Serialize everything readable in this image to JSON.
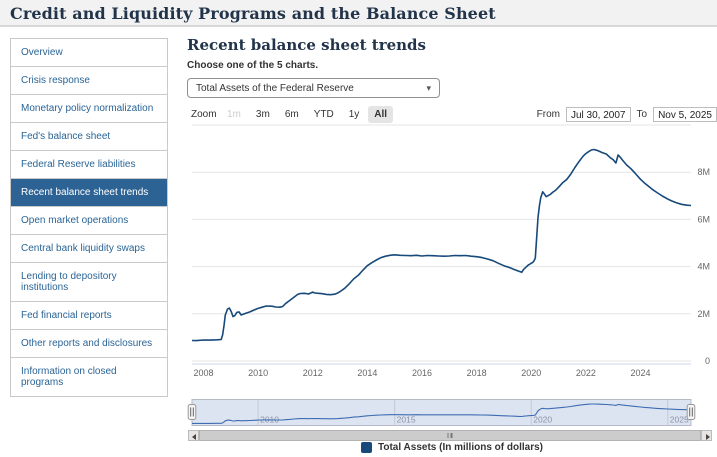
{
  "header": {
    "title": "Credit and Liquidity Programs and the Balance Sheet"
  },
  "sidebar": {
    "items": [
      {
        "label": "Overview",
        "selected": false
      },
      {
        "label": "Crisis response",
        "selected": false
      },
      {
        "label": "Monetary policy normalization",
        "selected": false
      },
      {
        "label": "Fed's balance sheet",
        "selected": false
      },
      {
        "label": "Federal Reserve liabilities",
        "selected": false
      },
      {
        "label": "Recent balance sheet trends",
        "selected": true
      },
      {
        "label": "Open market operations",
        "selected": false
      },
      {
        "label": "Central bank liquidity swaps",
        "selected": false
      },
      {
        "label": "Lending to depository institutions",
        "selected": false
      },
      {
        "label": "Fed financial reports",
        "selected": false
      },
      {
        "label": "Other reports and disclosures",
        "selected": false
      },
      {
        "label": "Information on closed programs",
        "selected": false
      }
    ]
  },
  "main": {
    "title": "Recent balance sheet trends",
    "chooser_label": "Choose one of the 5 charts.",
    "select": {
      "value": "Total Assets of the Federal Reserve"
    },
    "range_selector": {
      "zoom_label": "Zoom",
      "buttons": [
        {
          "label": "1m",
          "state": "disabled"
        },
        {
          "label": "3m",
          "state": "normal"
        },
        {
          "label": "6m",
          "state": "normal"
        },
        {
          "label": "YTD",
          "state": "normal"
        },
        {
          "label": "1y",
          "state": "normal"
        },
        {
          "label": "All",
          "state": "selected"
        }
      ],
      "from_label": "From",
      "from_value": "Jul 30, 2007",
      "to_label": "To",
      "to_value": "Nov 5, 2025"
    },
    "legend": {
      "label": "Total Assets (In millions of dollars)"
    }
  },
  "chart_data": {
    "type": "line",
    "title": "",
    "series_name": "Total Assets (In millions of dollars)",
    "x_unit": "year",
    "x_range": [
      2007.58,
      2025.85
    ],
    "ylim": [
      0,
      10000000
    ],
    "grid": true,
    "legend_position": "bottom",
    "x_ticks": [
      2008,
      2010,
      2012,
      2014,
      2016,
      2018,
      2020,
      2022,
      2024
    ],
    "y_ticks": [
      {
        "value": 0,
        "label": "0"
      },
      {
        "value": 2000000,
        "label": "2M"
      },
      {
        "value": 4000000,
        "label": "4M"
      },
      {
        "value": 6000000,
        "label": "6M"
      },
      {
        "value": 8000000,
        "label": "8M"
      },
      {
        "value": 10000000,
        "label": ""
      }
    ],
    "navigator_x_ticks": [
      2010,
      2015,
      2020,
      2025
    ],
    "points": [
      [
        2007.58,
        870000
      ],
      [
        2007.75,
        865000
      ],
      [
        2008.0,
        890000
      ],
      [
        2008.25,
        885000
      ],
      [
        2008.5,
        900000
      ],
      [
        2008.65,
        910000
      ],
      [
        2008.7,
        1100000
      ],
      [
        2008.75,
        1500000
      ],
      [
        2008.8,
        1950000
      ],
      [
        2008.88,
        2200000
      ],
      [
        2008.95,
        2240000
      ],
      [
        2009.02,
        2090000
      ],
      [
        2009.08,
        1880000
      ],
      [
        2009.15,
        1930000
      ],
      [
        2009.22,
        2060000
      ],
      [
        2009.3,
        2080000
      ],
      [
        2009.38,
        1950000
      ],
      [
        2009.45,
        1980000
      ],
      [
        2009.55,
        2020000
      ],
      [
        2009.7,
        2080000
      ],
      [
        2009.85,
        2160000
      ],
      [
        2010.0,
        2230000
      ],
      [
        2010.15,
        2280000
      ],
      [
        2010.3,
        2330000
      ],
      [
        2010.5,
        2320000
      ],
      [
        2010.65,
        2290000
      ],
      [
        2010.8,
        2280000
      ],
      [
        2010.9,
        2310000
      ],
      [
        2011.0,
        2430000
      ],
      [
        2011.15,
        2560000
      ],
      [
        2011.3,
        2690000
      ],
      [
        2011.45,
        2820000
      ],
      [
        2011.55,
        2860000
      ],
      [
        2011.7,
        2870000
      ],
      [
        2011.85,
        2840000
      ],
      [
        2012.0,
        2920000
      ],
      [
        2012.08,
        2880000
      ],
      [
        2012.2,
        2870000
      ],
      [
        2012.35,
        2850000
      ],
      [
        2012.5,
        2820000
      ],
      [
        2012.65,
        2810000
      ],
      [
        2012.8,
        2830000
      ],
      [
        2012.92,
        2880000
      ],
      [
        2013.0,
        2940000
      ],
      [
        2013.17,
        3080000
      ],
      [
        2013.33,
        3260000
      ],
      [
        2013.5,
        3480000
      ],
      [
        2013.67,
        3630000
      ],
      [
        2013.83,
        3840000
      ],
      [
        2014.0,
        4040000
      ],
      [
        2014.17,
        4170000
      ],
      [
        2014.33,
        4280000
      ],
      [
        2014.5,
        4380000
      ],
      [
        2014.67,
        4440000
      ],
      [
        2014.83,
        4480000
      ],
      [
        2015.0,
        4500000
      ],
      [
        2015.2,
        4480000
      ],
      [
        2015.4,
        4470000
      ],
      [
        2015.6,
        4460000
      ],
      [
        2015.8,
        4480000
      ],
      [
        2016.0,
        4450000
      ],
      [
        2016.2,
        4470000
      ],
      [
        2016.4,
        4460000
      ],
      [
        2016.6,
        4450000
      ],
      [
        2016.8,
        4440000
      ],
      [
        2017.0,
        4450000
      ],
      [
        2017.2,
        4470000
      ],
      [
        2017.4,
        4460000
      ],
      [
        2017.6,
        4470000
      ],
      [
        2017.8,
        4440000
      ],
      [
        2018.0,
        4420000
      ],
      [
        2018.2,
        4380000
      ],
      [
        2018.4,
        4320000
      ],
      [
        2018.6,
        4250000
      ],
      [
        2018.8,
        4140000
      ],
      [
        2019.0,
        4040000
      ],
      [
        2019.2,
        3960000
      ],
      [
        2019.4,
        3870000
      ],
      [
        2019.55,
        3800000
      ],
      [
        2019.65,
        3760000
      ],
      [
        2019.72,
        3880000
      ],
      [
        2019.8,
        3970000
      ],
      [
        2019.9,
        4070000
      ],
      [
        2019.95,
        4100000
      ],
      [
        2020.0,
        4150000
      ],
      [
        2020.05,
        4170000
      ],
      [
        2020.1,
        4240000
      ],
      [
        2020.15,
        4360000
      ],
      [
        2020.2,
        5250000
      ],
      [
        2020.25,
        6080000
      ],
      [
        2020.3,
        6570000
      ],
      [
        2020.35,
        6930000
      ],
      [
        2020.42,
        7170000
      ],
      [
        2020.48,
        7080000
      ],
      [
        2020.55,
        6960000
      ],
      [
        2020.62,
        7010000
      ],
      [
        2020.7,
        7060000
      ],
      [
        2020.8,
        7160000
      ],
      [
        2020.9,
        7240000
      ],
      [
        2021.0,
        7360000
      ],
      [
        2021.15,
        7550000
      ],
      [
        2021.3,
        7690000
      ],
      [
        2021.45,
        7920000
      ],
      [
        2021.6,
        8200000
      ],
      [
        2021.75,
        8450000
      ],
      [
        2021.9,
        8680000
      ],
      [
        2022.0,
        8790000
      ],
      [
        2022.1,
        8870000
      ],
      [
        2022.2,
        8940000
      ],
      [
        2022.3,
        8960000
      ],
      [
        2022.4,
        8930000
      ],
      [
        2022.5,
        8880000
      ],
      [
        2022.6,
        8830000
      ],
      [
        2022.75,
        8770000
      ],
      [
        2022.9,
        8610000
      ],
      [
        2023.0,
        8530000
      ],
      [
        2023.1,
        8390000
      ],
      [
        2023.18,
        8730000
      ],
      [
        2023.25,
        8650000
      ],
      [
        2023.35,
        8500000
      ],
      [
        2023.5,
        8300000
      ],
      [
        2023.65,
        8150000
      ],
      [
        2023.8,
        7960000
      ],
      [
        2024.0,
        7700000
      ],
      [
        2024.15,
        7540000
      ],
      [
        2024.3,
        7400000
      ],
      [
        2024.45,
        7260000
      ],
      [
        2024.6,
        7140000
      ],
      [
        2024.8,
        6990000
      ],
      [
        2025.0,
        6860000
      ],
      [
        2025.15,
        6780000
      ],
      [
        2025.3,
        6710000
      ],
      [
        2025.5,
        6640000
      ],
      [
        2025.7,
        6600000
      ],
      [
        2025.85,
        6590000
      ]
    ]
  },
  "colors": {
    "heading": "#22344a",
    "link": "#2a6496",
    "selected_bg": "#2d6394",
    "series": "#17497b",
    "navigator_line": "#3e6cb2",
    "navigator_mask": "rgba(101,131,192,0.22)",
    "grid": "#e6e6e6",
    "axis_line": "#ccd6eb",
    "axis_label": "#666666",
    "nav_label": "#8a94a8"
  }
}
